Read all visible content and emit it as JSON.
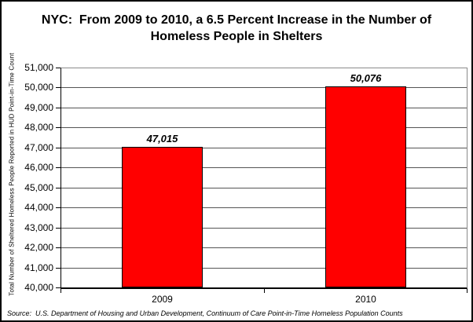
{
  "chart_data": {
    "type": "bar",
    "title": "NYC:  From 2009 to 2010, a 6.5 Percent Increase in the Number of Homeless People in Shelters",
    "categories": [
      "2009",
      "2010"
    ],
    "values": [
      47015,
      50076
    ],
    "data_labels": [
      "47,015",
      "50,076"
    ],
    "xlabel": "",
    "ylabel": "Total Number of Sheltered Homeless People Reported in HUD Point-in-Time Count",
    "ylim": [
      40000,
      51000
    ],
    "ytick_step": 1000,
    "ytick_labels": [
      "40,000",
      "41,000",
      "42,000",
      "43,000",
      "44,000",
      "45,000",
      "46,000",
      "47,000",
      "48,000",
      "49,000",
      "50,000",
      "51,000"
    ],
    "grid": true,
    "legend": false,
    "bar_color": "#FF0000"
  },
  "footer": {
    "source": "Source:  U.S. Department of Housing and Urban Development, Continuum of Care Point-in-Time Homeless Population Counts"
  },
  "colors": {
    "bar": "#FF0000",
    "gridline": "#555555",
    "axis": "#000000",
    "frame_border": "#000000"
  }
}
